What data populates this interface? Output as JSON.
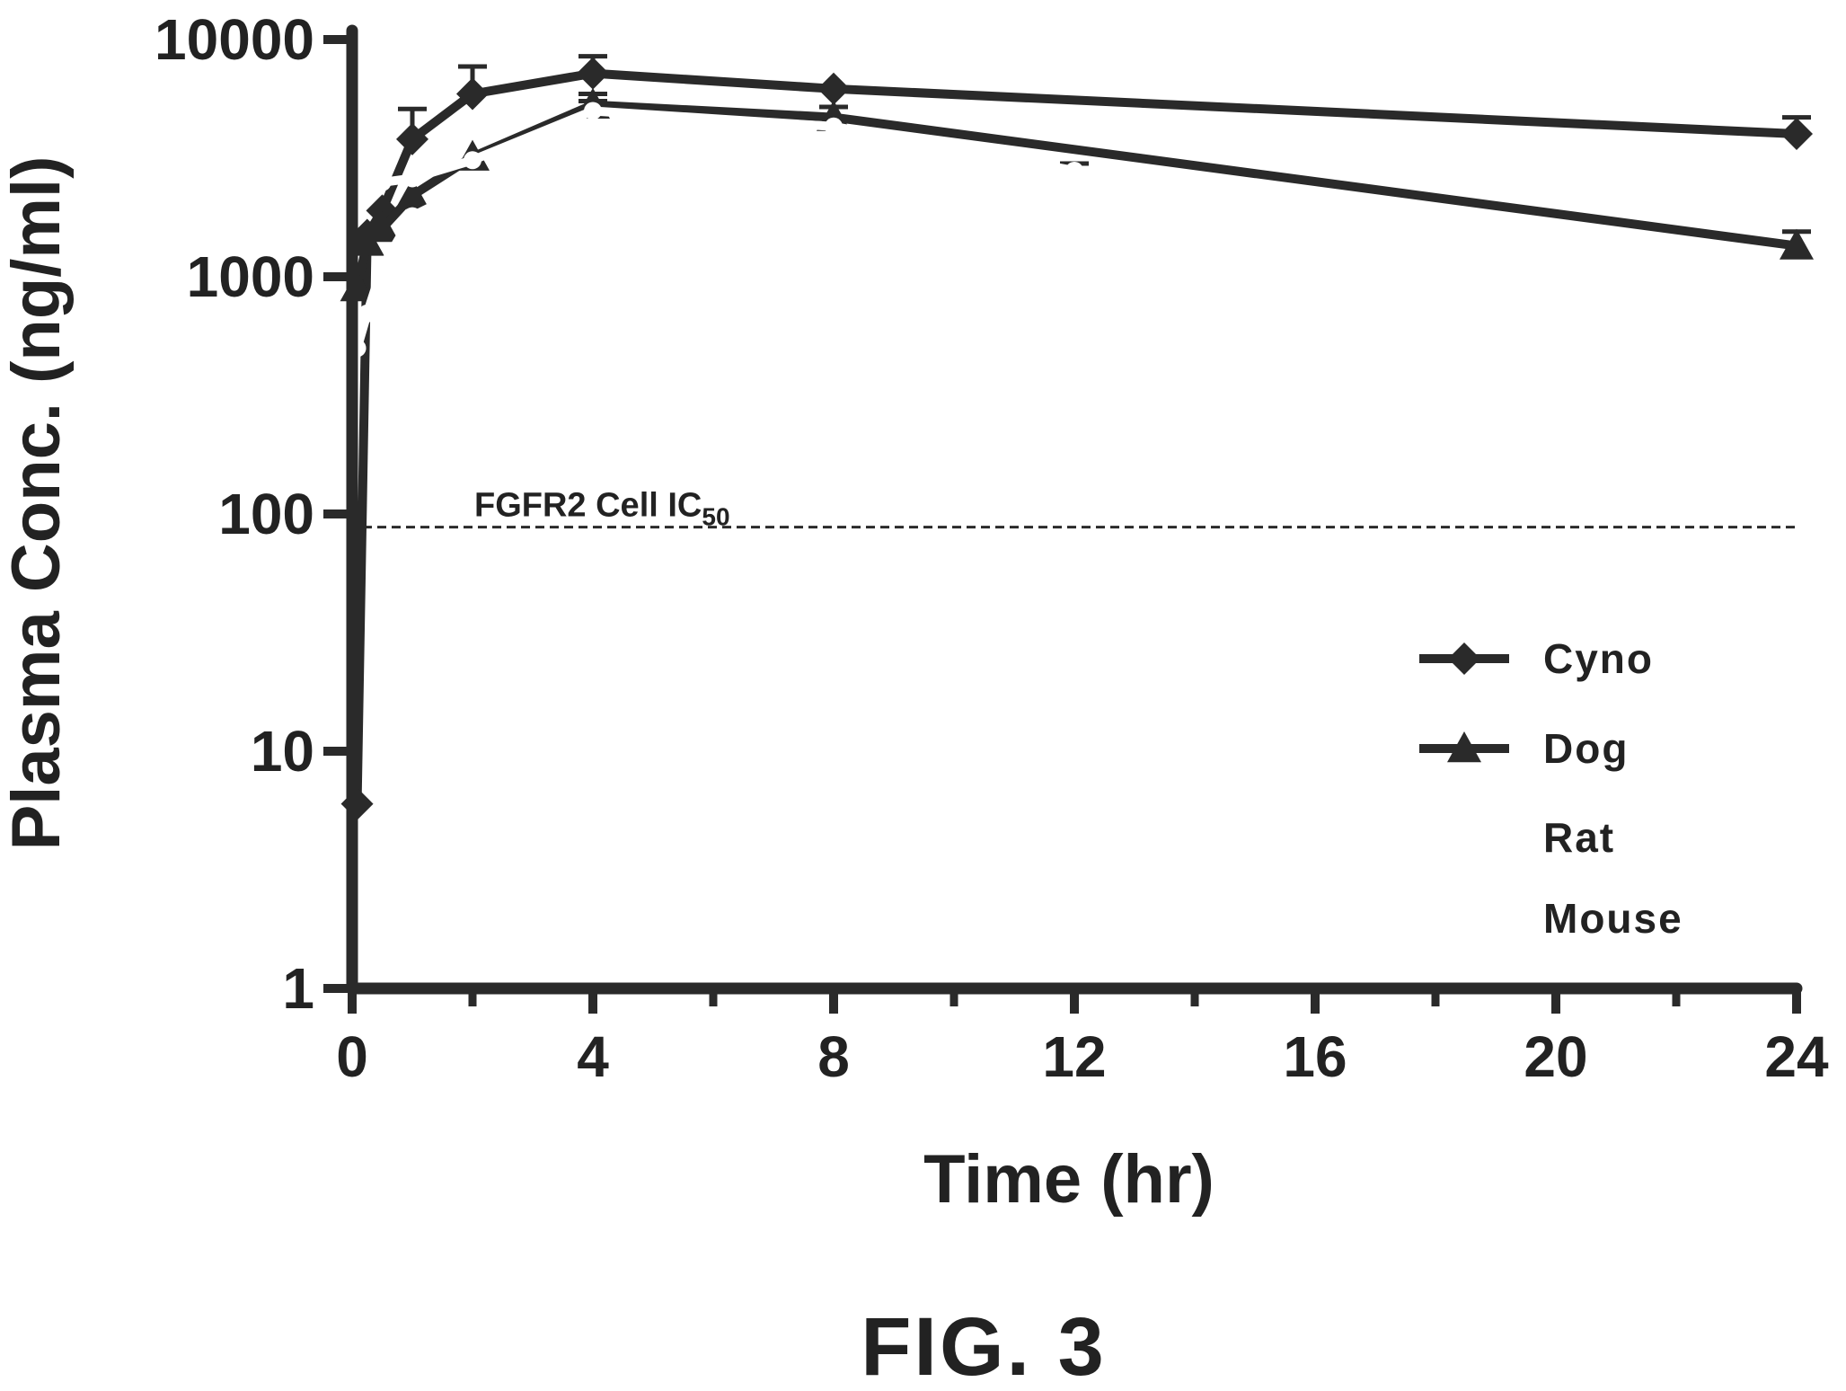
{
  "figure_caption": "FIG. 3",
  "chart_data": {
    "type": "line",
    "xlabel": "Time (hr)",
    "ylabel": "Plasma Conc. (ng/ml)",
    "xlim": [
      0,
      24
    ],
    "ylim": [
      1,
      10000
    ],
    "yscale": "log",
    "x_ticks": [
      0,
      4,
      8,
      12,
      16,
      20,
      24
    ],
    "x_tick_labels": [
      "0",
      "4",
      "8",
      "12",
      "16",
      "20",
      "24"
    ],
    "y_ticks": [
      1,
      10,
      100,
      1000,
      10000
    ],
    "y_tick_labels": [
      "1",
      "10",
      "100",
      "1000",
      "10000"
    ],
    "legend_position": "right",
    "reference_line": {
      "label": "FGFR2 Cell IC",
      "label_subscript": "50",
      "y": 88,
      "style": "dashed"
    },
    "series": [
      {
        "name": "Cyno",
        "marker": "diamond",
        "color": "#2a2a2a",
        "x": [
          0.083,
          0.25,
          0.5,
          1,
          2,
          4,
          8,
          24
        ],
        "y": [
          6,
          1500,
          1900,
          3800,
          5900,
          7200,
          6200,
          4000
        ],
        "err": [
          0,
          0,
          0,
          1300,
          1800,
          1300,
          0,
          700
        ]
      },
      {
        "name": "Dog",
        "marker": "triangle",
        "color": "#2a2a2a",
        "x": [
          0.083,
          0.25,
          0.5,
          1,
          2,
          4,
          8,
          24
        ],
        "y": [
          900,
          1400,
          1600,
          2200,
          3200,
          5300,
          4700,
          1350
        ],
        "err": [
          0,
          0,
          0,
          0,
          0,
          600,
          500,
          200
        ]
      },
      {
        "name": "Rat",
        "marker": "none",
        "color": "#ffffff",
        "x": [
          0.083,
          0.25,
          0.5,
          1,
          2,
          4,
          8,
          12
        ],
        "y": [
          2200,
          2400,
          2500,
          2600,
          3100,
          5000,
          4300,
          2800
        ],
        "err": [
          0,
          0,
          0,
          0,
          0,
          500,
          400,
          200
        ]
      },
      {
        "name": "Mouse",
        "marker": "none",
        "color": "#ffffff",
        "x": [
          0.083,
          0.25,
          0.5,
          1,
          2
        ],
        "y": [
          500,
          700,
          1100,
          1800,
          2400
        ],
        "err": [
          0,
          0,
          0,
          0,
          0
        ]
      }
    ]
  }
}
